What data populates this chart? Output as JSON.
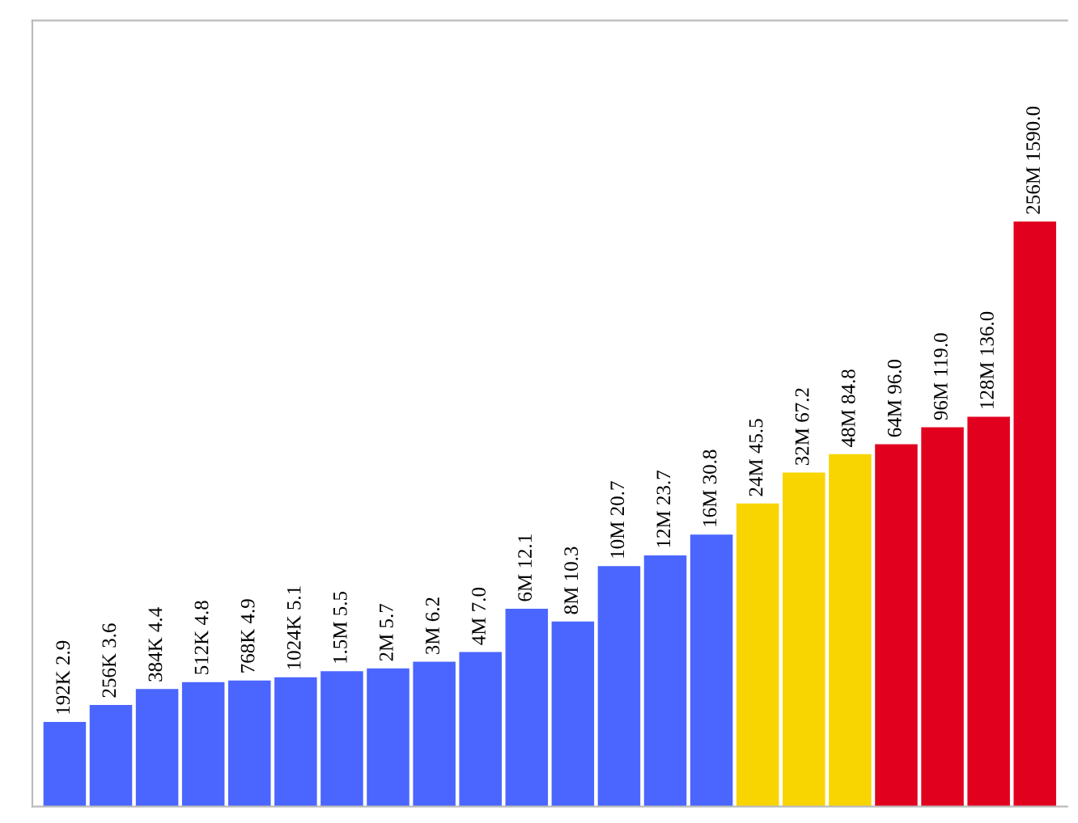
{
  "chart_data": {
    "type": "bar",
    "categories": [
      null,
      null,
      null,
      null,
      null,
      null,
      null,
      null,
      null,
      null,
      null,
      null,
      null,
      null,
      null,
      null,
      null,
      null,
      null,
      null,
      null,
      null
    ],
    "values": [
      2.9,
      3.6,
      4.4,
      4.8,
      4.9,
      5.1,
      5.5,
      5.7,
      6.2,
      7.0,
      12.1,
      10.3,
      20.7,
      23.7,
      30.8,
      45.5,
      67.2,
      84.8,
      96.0,
      119.0,
      136.0,
      1590.0
    ],
    "value_labels": [
      "192K 2.9",
      "256K 3.6",
      "384K 4.4",
      "512K 4.8",
      "768K 4.9",
      "1024K 5.1",
      "1.5M 5.5",
      "2M 5.7",
      "3M 6.2",
      "4M 7.0",
      "6M 12.1",
      "8M 10.3",
      "10M 20.7",
      "12M 23.7",
      "16M 30.8",
      "24M 45.5",
      "32M 67.2",
      "48M 84.8",
      "64M 96.0",
      "96M 119.0",
      "128M 136.0",
      "256M 1590.0"
    ],
    "colors": [
      "#4a66ff",
      "#4a66ff",
      "#4a66ff",
      "#4a66ff",
      "#4a66ff",
      "#4a66ff",
      "#4a66ff",
      "#4a66ff",
      "#4a66ff",
      "#4a66ff",
      "#4a66ff",
      "#4a66ff",
      "#4a66ff",
      "#4a66ff",
      "#4a66ff",
      "#f8d400",
      "#f8d400",
      "#f8d400",
      "#e2001f",
      "#e2001f",
      "#e2001f",
      "#e2001f"
    ],
    "log": true,
    "ylim": [
      1,
      20000
    ],
    "tick_labels": false,
    "grid": false,
    "legend": false
  }
}
